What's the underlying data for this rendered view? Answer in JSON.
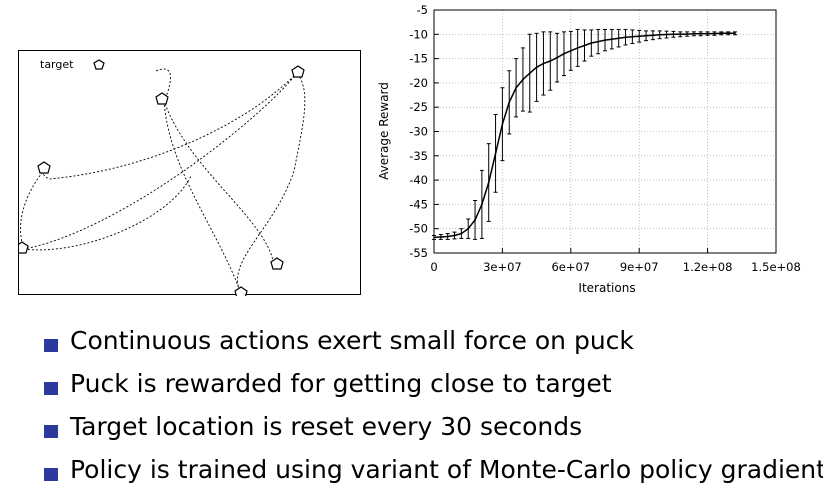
{
  "puck_panel": {
    "target_label": "target"
  },
  "chart_data": {
    "type": "line",
    "title": "",
    "xlabel": "Iterations",
    "ylabel": "Average Reward",
    "xlim": [
      0,
      150000000
    ],
    "ylim": [
      -55,
      -5
    ],
    "x_ticks": [
      "0",
      "3e+07",
      "6e+07",
      "9e+07",
      "1.2e+08",
      "1.5e+08"
    ],
    "y_ticks": [
      "-5",
      "-10",
      "-15",
      "-20",
      "-25",
      "-30",
      "-35",
      "-40",
      "-45",
      "-50",
      "-55"
    ],
    "grid": true,
    "series": [
      {
        "x": [
          0,
          3000000,
          6000000,
          9000000,
          12000000,
          15000000,
          18000000,
          21000000,
          24000000,
          27000000,
          30000000,
          33000000,
          36000000,
          39000000,
          42000000,
          45000000,
          48000000,
          51000000,
          54000000,
          57000000,
          60000000,
          63000000,
          66000000,
          69000000,
          72000000,
          75000000,
          78000000,
          81000000,
          84000000,
          87000000,
          90000000,
          93000000,
          96000000,
          99000000,
          102000000,
          105000000,
          108000000,
          111000000,
          114000000,
          117000000,
          120000000,
          123000000,
          126000000,
          129000000,
          132000000
        ],
        "y": [
          -51.8,
          -51.7,
          -51.6,
          -51.4,
          -51.0,
          -50.0,
          -48.2,
          -45.0,
          -40.5,
          -34.5,
          -28.5,
          -24.0,
          -21.0,
          -19.3,
          -18.0,
          -16.8,
          -16.0,
          -15.5,
          -14.8,
          -14.0,
          -13.4,
          -12.8,
          -12.3,
          -11.8,
          -11.5,
          -11.2,
          -11.0,
          -10.8,
          -10.6,
          -10.5,
          -10.4,
          -10.3,
          -10.2,
          -10.1,
          -10.05,
          -10.0,
          -10.0,
          -9.95,
          -9.9,
          -9.9,
          -9.85,
          -9.85,
          -9.8,
          -9.8,
          -9.8
        ],
        "err": [
          0.4,
          0.5,
          0.6,
          0.7,
          1.0,
          2.0,
          4.0,
          7.0,
          8.0,
          8.0,
          7.5,
          6.5,
          6.0,
          6.5,
          8.0,
          7.0,
          6.5,
          6.0,
          5.0,
          4.5,
          4.0,
          3.8,
          3.2,
          2.7,
          2.5,
          2.2,
          2.0,
          1.8,
          1.6,
          1.4,
          1.2,
          1.0,
          0.9,
          0.8,
          0.7,
          0.6,
          0.5,
          0.45,
          0.4,
          0.4,
          0.35,
          0.35,
          0.3,
          0.3,
          0.3
        ]
      }
    ]
  },
  "bullets": [
    "Continuous actions exert small force on puck",
    "Puck is rewarded for getting close to target",
    "Target location is reset every 30 seconds",
    "Policy is trained using variant of Monte-Carlo policy gradient"
  ],
  "colors": {
    "bullet": "#2b3a9c",
    "line": "#000000",
    "grid": "#999999"
  }
}
